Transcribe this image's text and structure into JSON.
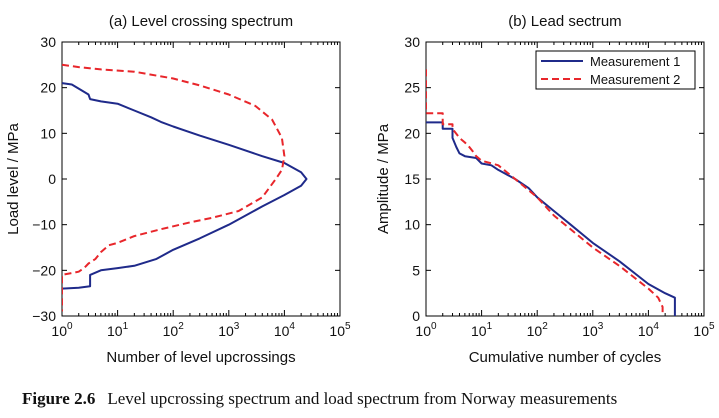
{
  "colors": {
    "measurement1": "#1f2a8a",
    "measurement2": "#e8262b",
    "axes": "#000000"
  },
  "caption": {
    "label": "Figure 2.6",
    "text": "Level upcrossing spectrum and load spectrum from Norway measurements"
  },
  "chart_data": [
    {
      "type": "line",
      "title": "(a) Level crossing spectrum",
      "xlabel": "Number of level upcrossings",
      "ylabel": "Load level / MPa",
      "xscale": "log",
      "xlim": [
        1,
        100000
      ],
      "ylim": [
        -30,
        30
      ],
      "xticks": [
        {
          "base": "10",
          "exp": "0"
        },
        {
          "base": "10",
          "exp": "1"
        },
        {
          "base": "10",
          "exp": "2"
        },
        {
          "base": "10",
          "exp": "3"
        },
        {
          "base": "10",
          "exp": "4"
        },
        {
          "base": "10",
          "exp": "5"
        }
      ],
      "yticks": [
        "−30",
        "−20",
        "−10",
        "0",
        "10",
        "20",
        "30"
      ],
      "grid": false,
      "series": [
        {
          "style": "solid",
          "points": [
            [
              1,
              21
            ],
            [
              1.5,
              20.7
            ],
            [
              2.2,
              19.5
            ],
            [
              3,
              18.5
            ],
            [
              3.2,
              17.5
            ],
            [
              5,
              17
            ],
            [
              10,
              16.5
            ],
            [
              20,
              15
            ],
            [
              40,
              13.5
            ],
            [
              60,
              12.5
            ],
            [
              100,
              11.5
            ],
            [
              300,
              9.5
            ],
            [
              1000,
              7.5
            ],
            [
              4000,
              5
            ],
            [
              10000,
              3.5
            ],
            [
              20000,
              1.5
            ],
            [
              25000,
              0
            ],
            [
              20000,
              -1.5
            ],
            [
              10000,
              -3.5
            ],
            [
              4000,
              -6
            ],
            [
              1000,
              -10
            ],
            [
              300,
              -13
            ],
            [
              100,
              -15.5
            ],
            [
              50,
              -17.5
            ],
            [
              20,
              -19
            ],
            [
              10,
              -19.5
            ],
            [
              5,
              -20
            ],
            [
              3.2,
              -21
            ],
            [
              3.2,
              -23.5
            ],
            [
              2,
              -23.8
            ],
            [
              1,
              -24
            ]
          ]
        },
        {
          "style": "dashed",
          "points": [
            [
              1,
              25
            ],
            [
              2,
              24.5
            ],
            [
              5,
              24
            ],
            [
              20,
              23.5
            ],
            [
              100,
              22
            ],
            [
              300,
              20.5
            ],
            [
              1000,
              18.5
            ],
            [
              3000,
              16
            ],
            [
              6000,
              13
            ],
            [
              9000,
              9
            ],
            [
              10000,
              5
            ],
            [
              9000,
              2
            ],
            [
              7000,
              0
            ],
            [
              4000,
              -4
            ],
            [
              1500,
              -7
            ],
            [
              500,
              -8.5
            ],
            [
              200,
              -9.5
            ],
            [
              60,
              -11
            ],
            [
              20,
              -12.5
            ],
            [
              10,
              -14
            ],
            [
              7,
              -14.5
            ],
            [
              5,
              -16
            ],
            [
              4,
              -17.5
            ],
            [
              3,
              -18.5
            ],
            [
              2.5,
              -19.5
            ],
            [
              2,
              -20.3
            ],
            [
              1,
              -21
            ],
            [
              1,
              -29
            ]
          ]
        }
      ]
    },
    {
      "type": "line",
      "title": "(b) Lead sectrum",
      "xlabel": "Cumulative number of cycles",
      "ylabel": "Amplitude / MPa",
      "xscale": "log",
      "xlim": [
        1,
        100000
      ],
      "ylim": [
        0,
        30
      ],
      "xticks": [
        {
          "base": "10",
          "exp": "0"
        },
        {
          "base": "10",
          "exp": "1"
        },
        {
          "base": "10",
          "exp": "2"
        },
        {
          "base": "10",
          "exp": "3"
        },
        {
          "base": "10",
          "exp": "4"
        },
        {
          "base": "10",
          "exp": "5"
        }
      ],
      "yticks": [
        "0",
        "5",
        "10",
        "15",
        "20",
        "25",
        "30"
      ],
      "grid": false,
      "legend_position": "top-right",
      "series": [
        {
          "name": "Measurement 1",
          "style": "solid",
          "points": [
            [
              1,
              21.2
            ],
            [
              2,
              21.2
            ],
            [
              2,
              20.5
            ],
            [
              3,
              20.5
            ],
            [
              3,
              19.5
            ],
            [
              3.5,
              18.5
            ],
            [
              4,
              17.8
            ],
            [
              5,
              17.5
            ],
            [
              8,
              17.3
            ],
            [
              10,
              16.7
            ],
            [
              15,
              16.5
            ],
            [
              20,
              16
            ],
            [
              40,
              15
            ],
            [
              70,
              14
            ],
            [
              100,
              13
            ],
            [
              200,
              11.5
            ],
            [
              400,
              10
            ],
            [
              1000,
              8
            ],
            [
              3000,
              6
            ],
            [
              10000,
              3.5
            ],
            [
              20000,
              2.5
            ],
            [
              30000,
              2
            ],
            [
              30000,
              0
            ]
          ]
        },
        {
          "name": "Measurement 2",
          "style": "dashed",
          "points": [
            [
              1,
              27
            ],
            [
              1,
              22.2
            ],
            [
              2,
              22.2
            ],
            [
              2,
              21
            ],
            [
              3,
              21
            ],
            [
              3,
              20.5
            ],
            [
              4,
              19.5
            ],
            [
              5,
              19
            ],
            [
              6,
              18.5
            ],
            [
              7,
              18
            ],
            [
              8,
              17.5
            ],
            [
              10,
              17
            ],
            [
              20,
              16.5
            ],
            [
              40,
              15
            ],
            [
              100,
              13
            ],
            [
              200,
              11
            ],
            [
              500,
              9
            ],
            [
              1000,
              7.5
            ],
            [
              3000,
              5.5
            ],
            [
              10000,
              3
            ],
            [
              15000,
              2
            ],
            [
              18000,
              1
            ],
            [
              18000,
              0
            ]
          ]
        }
      ]
    }
  ]
}
